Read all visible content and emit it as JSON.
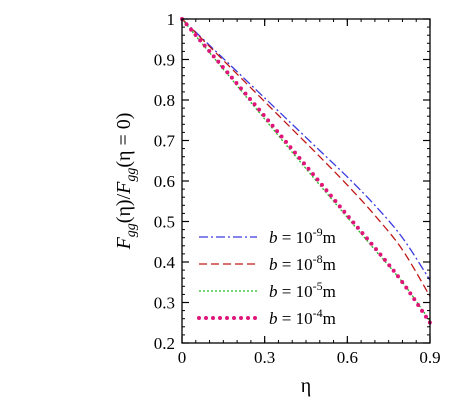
{
  "chart_data": {
    "type": "line",
    "xlabel": "η",
    "ylabel_parts": {
      "f1": "F",
      "sub1": "gg",
      "mid": "(η)/",
      "f2": "F",
      "sub2": "gg",
      "tail": "(η = 0)"
    },
    "xlim": [
      0,
      0.9
    ],
    "ylim": [
      0.2,
      1.0
    ],
    "x_ticks": [
      0,
      0.3,
      0.6,
      0.9
    ],
    "x_tick_labels": [
      "0",
      "0.3",
      "0.6",
      "0.9"
    ],
    "y_ticks": [
      0.2,
      0.3,
      0.4,
      0.5,
      0.6,
      0.7,
      0.8,
      0.9,
      1.0
    ],
    "y_tick_labels": [
      "0.2",
      "0.3",
      "0.4",
      "0.5",
      "0.6",
      "0.7",
      "0.8",
      "0.9",
      "1"
    ],
    "grid": false,
    "legend_position": "lower-left",
    "series": [
      {
        "legend": {
          "b": "b",
          "eq": " = 10",
          "exp": "-9",
          "unit": "m"
        },
        "color": "#3a3ae0",
        "style": "dashdot",
        "x": [
          0,
          0.1,
          0.2,
          0.3,
          0.4,
          0.5,
          0.6,
          0.7,
          0.8,
          0.9
        ],
        "y": [
          1.0,
          0.935,
          0.87,
          0.805,
          0.74,
          0.675,
          0.61,
          0.54,
          0.46,
          0.355
        ]
      },
      {
        "legend": {
          "b": "b",
          "eq": " = 10",
          "exp": "-8",
          "unit": "m"
        },
        "color": "#c01818",
        "style": "dashed",
        "x": [
          0,
          0.1,
          0.2,
          0.3,
          0.4,
          0.5,
          0.6,
          0.7,
          0.8,
          0.9
        ],
        "y": [
          1.0,
          0.932,
          0.864,
          0.796,
          0.728,
          0.66,
          0.59,
          0.515,
          0.43,
          0.315
        ]
      },
      {
        "legend": {
          "b": "b",
          "eq": " = 10",
          "exp": "-5",
          "unit": "m"
        },
        "color": "#22bb22",
        "style": "dotted",
        "x": [
          0,
          0.1,
          0.2,
          0.3,
          0.4,
          0.5,
          0.6,
          0.7,
          0.8,
          0.9
        ],
        "y": [
          1.0,
          0.917,
          0.835,
          0.753,
          0.671,
          0.59,
          0.51,
          0.43,
          0.35,
          0.255
        ]
      },
      {
        "legend": {
          "b": "b",
          "eq": " = 10",
          "exp": "-4",
          "unit": "m"
        },
        "color": "#e0157a",
        "style": "thick-dotted",
        "x": [
          0,
          0.1,
          0.2,
          0.3,
          0.4,
          0.5,
          0.6,
          0.7,
          0.8,
          0.9
        ],
        "y": [
          1.0,
          0.92,
          0.84,
          0.76,
          0.678,
          0.597,
          0.515,
          0.435,
          0.35,
          0.25
        ]
      }
    ]
  }
}
